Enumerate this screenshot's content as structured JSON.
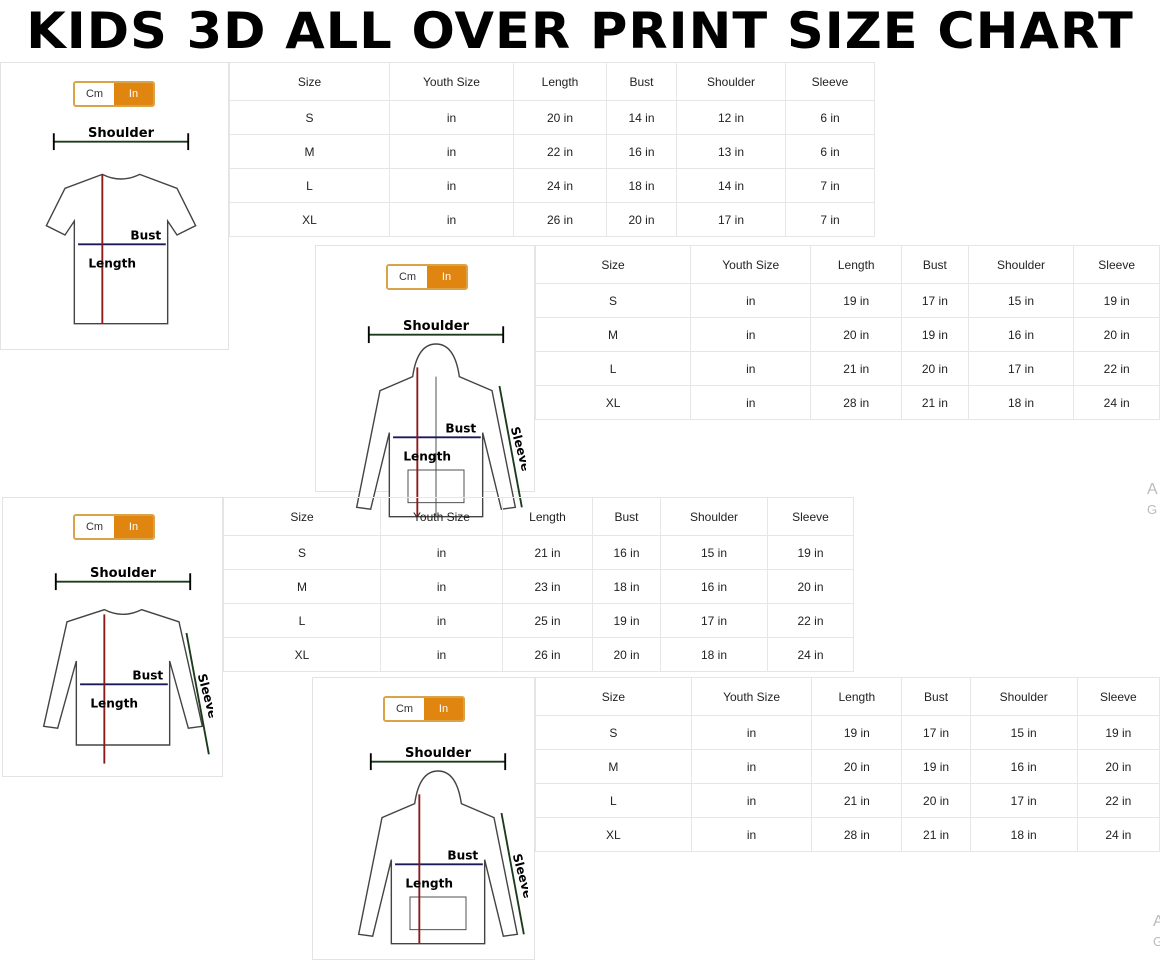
{
  "title": "KIDS 3D ALL OVER PRINT SIZE CHART",
  "accent_color": "#e0850f",
  "unit_toggle": {
    "cm": "Cm",
    "in": "In",
    "selected": "In"
  },
  "labels": {
    "shoulder": "Shoulder",
    "bust": "Bust",
    "length": "Length",
    "sleeve": "Sleeve"
  },
  "columns": [
    "Size",
    "Youth Size",
    "Length",
    "Bust",
    "Shoulder",
    "Sleeve"
  ],
  "charts": [
    {
      "garment": "t-shirt",
      "rows": [
        [
          "S",
          "in",
          "20 in",
          "14 in",
          "12 in",
          "6 in"
        ],
        [
          "M",
          "in",
          "22 in",
          "16 in",
          "13 in",
          "6 in"
        ],
        [
          "L",
          "in",
          "24 in",
          "18 in",
          "14 in",
          "7 in"
        ],
        [
          "XL",
          "in",
          "26 in",
          "20 in",
          "17 in",
          "7 in"
        ]
      ]
    },
    {
      "garment": "zip-hoodie",
      "rows": [
        [
          "S",
          "in",
          "19 in",
          "17 in",
          "15 in",
          "19 in"
        ],
        [
          "M",
          "in",
          "20 in",
          "19 in",
          "16 in",
          "20 in"
        ],
        [
          "L",
          "in",
          "21 in",
          "20 in",
          "17 in",
          "22 in"
        ],
        [
          "XL",
          "in",
          "28 in",
          "21 in",
          "18 in",
          "24 in"
        ]
      ]
    },
    {
      "garment": "long-sleeve",
      "rows": [
        [
          "S",
          "in",
          "21 in",
          "16 in",
          "15 in",
          "19 in"
        ],
        [
          "M",
          "in",
          "23 in",
          "18 in",
          "16 in",
          "20 in"
        ],
        [
          "L",
          "in",
          "25 in",
          "19 in",
          "17 in",
          "22 in"
        ],
        [
          "XL",
          "in",
          "26 in",
          "20 in",
          "18 in",
          "24 in"
        ]
      ]
    },
    {
      "garment": "pullover-hoodie",
      "rows": [
        [
          "S",
          "in",
          "19 in",
          "17 in",
          "15 in",
          "19 in"
        ],
        [
          "M",
          "in",
          "20 in",
          "19 in",
          "16 in",
          "20 in"
        ],
        [
          "L",
          "in",
          "21 in",
          "20 in",
          "17 in",
          "22 in"
        ],
        [
          "XL",
          "in",
          "28 in",
          "21 in",
          "18 in",
          "24 in"
        ]
      ]
    }
  ],
  "watermark": [
    "A",
    "G"
  ]
}
